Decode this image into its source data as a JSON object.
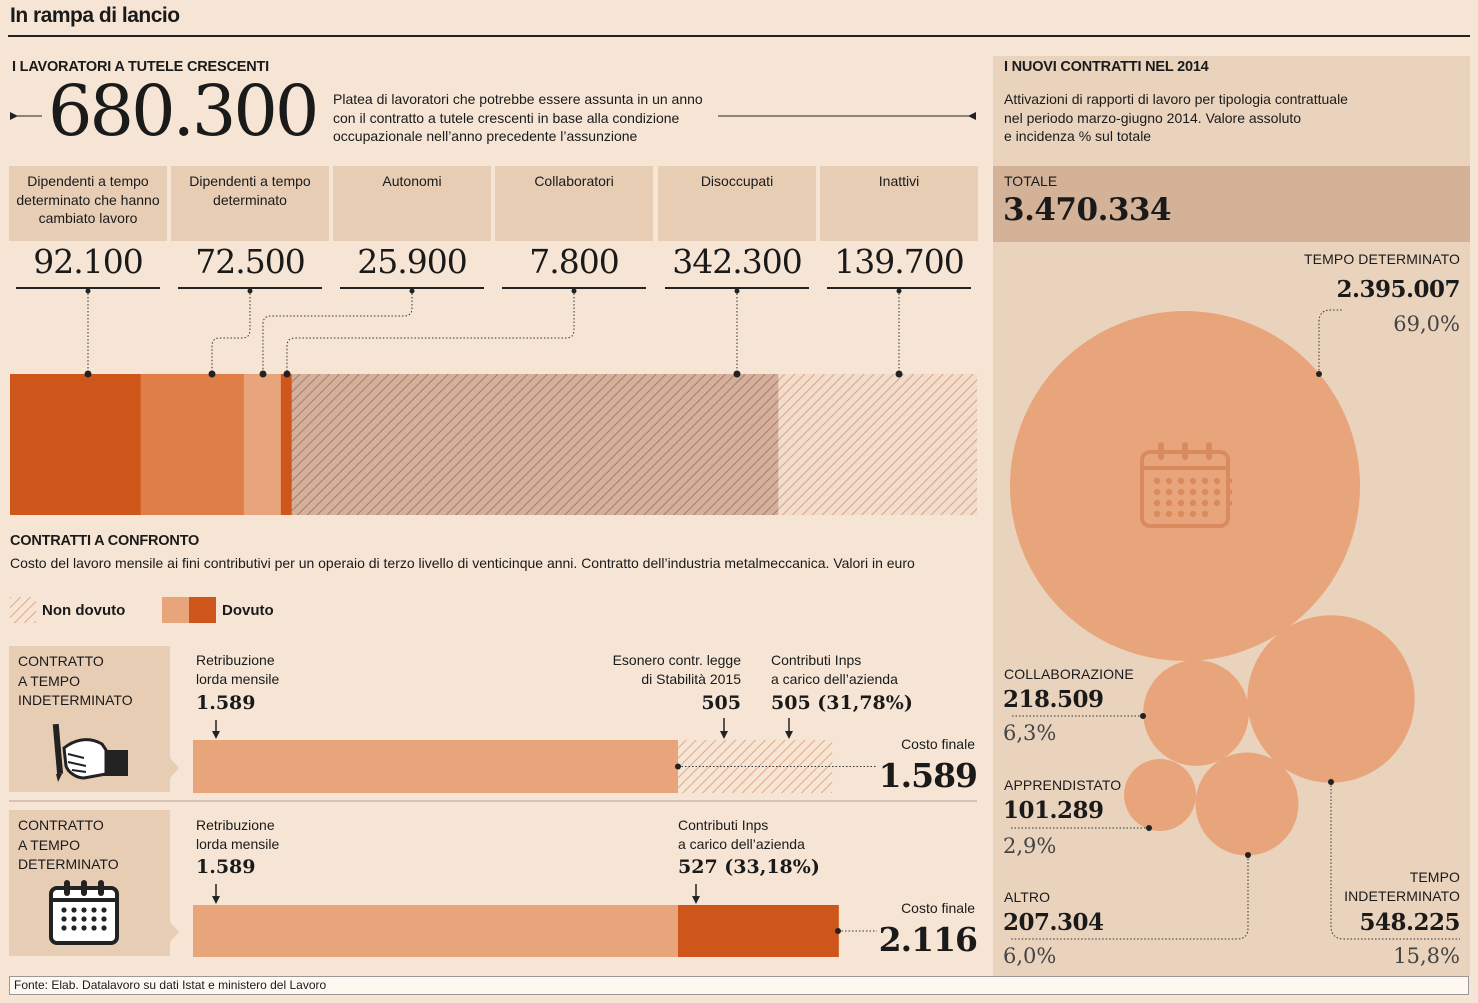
{
  "title": "In rampa di lancio",
  "left": {
    "heading": "I LAVORATORI A TUTELE CRESCENTI",
    "big_number": "680.300",
    "description": "Platea di lavoratori che potrebbe essere assunta in un anno con il contratto a tutele crescenti in base alla condizione occupazionale nell’anno precedente l’assunzione",
    "description_lines": [
      "Platea di lavoratori che potrebbe essere assunta in un anno",
      "con il contratto a tutele crescenti in base alla condizione",
      "occupazionale nell’anno precedente l’assunzione"
    ],
    "categories": [
      {
        "label_lines": [
          "Dipendenti a tempo",
          "determinato che hanno",
          "cambiato lavoro"
        ],
        "value": "92.100"
      },
      {
        "label_lines": [
          "Dipendenti a tempo",
          "determinato"
        ],
        "value": "72.500"
      },
      {
        "label_lines": [
          "Autonomi"
        ],
        "value": "25.900"
      },
      {
        "label_lines": [
          "Collaboratori"
        ],
        "value": "7.800"
      },
      {
        "label_lines": [
          "Disoccupati"
        ],
        "value": "342.300"
      },
      {
        "label_lines": [
          "Inattivi"
        ],
        "value": "139.700"
      }
    ]
  },
  "comparison": {
    "heading": "CONTRATTI A CONFRONTO",
    "subtitle": "Costo del lavoro mensile ai fini contributivi per un operaio di terzo livello di venticinque anni. Contratto dell’industria metalmeccanica. Valori in euro",
    "legend_not_due": "Non dovuto",
    "legend_due": "Dovuto",
    "rows": [
      {
        "type_lines": [
          "CONTRATTO",
          "A TEMPO",
          "INDETERMINATO"
        ],
        "icon": "hand-signing-icon",
        "retribuzione_lines": [
          "Retribuzione",
          "lorda mensile"
        ],
        "retribuzione_value": "1.589",
        "esonero_lines": [
          "Esonero contr. legge",
          "di Stabilità 2015"
        ],
        "esonero_value": "505",
        "contributi_lines": [
          "Contributi Inps",
          "a carico dell’azienda"
        ],
        "contributi_value": "505 (31,78%)",
        "costo_label": "Costo finale",
        "costo_value": "1.589"
      },
      {
        "type_lines": [
          "CONTRATTO",
          "A TEMPO",
          "DETERMINATO"
        ],
        "icon": "calendar-icon",
        "retribuzione_lines": [
          "Retribuzione",
          "lorda mensile"
        ],
        "retribuzione_value": "1.589",
        "contributi_lines": [
          "Contributi Inps",
          "a carico dell’azienda"
        ],
        "contributi_value": "527 (33,18%)",
        "costo_label": "Costo finale",
        "costo_value": "2.116"
      }
    ]
  },
  "right": {
    "heading": "I NUOVI CONTRATTI NEL 2014",
    "description_lines": [
      "Attivazioni di rapporti di lavoro per tipologia contrattuale",
      "nel periodo marzo-giugno 2014. Valore assoluto",
      "e incidenza % sul totale"
    ],
    "total_label": "TOTALE",
    "total_value": "3.470.334",
    "bubbles": [
      {
        "label_lines": [
          "TEMPO  DETERMINATO"
        ],
        "value": "2.395.007",
        "pct": "69,0%"
      },
      {
        "label_lines": [
          "COLLABORAZIONE"
        ],
        "value": "218.509",
        "pct": "6,3%"
      },
      {
        "label_lines": [
          "APPRENDISTATO"
        ],
        "value": "101.289",
        "pct": "2,9%"
      },
      {
        "label_lines": [
          "ALTRO"
        ],
        "value": "207.304",
        "pct": "6,0%"
      },
      {
        "label_lines": [
          "TEMPO",
          "INDETERMINATO"
        ],
        "value": "548.225",
        "pct": "15,8%"
      }
    ]
  },
  "source": "Fonte: Elab. Datalavoro su dati Istat e ministero del Lavoro",
  "colors": {
    "background": "#f6e5d4",
    "dark_orange": "#cf561b",
    "mid_orange": "#e07e47",
    "light_orange": "#e8a47a",
    "hatch": "#c99a83",
    "panel": "#ead3bd",
    "total_box": "#d3b298",
    "category_box": "#e8cdb5"
  },
  "chart_data": [
    {
      "type": "bar",
      "title": "I LAVORATORI A TUTELE CRESCENTI",
      "categories": [
        "Dipendenti a tempo determinato che hanno cambiato lavoro",
        "Dipendenti a tempo determinato",
        "Autonomi",
        "Collaboratori",
        "Disoccupati",
        "Inattivi"
      ],
      "values": [
        92100,
        72500,
        25900,
        7800,
        342300,
        139700
      ],
      "fill": [
        "solid",
        "solid",
        "solid",
        "solid",
        "hatched",
        "hatched"
      ],
      "total": 680300
    },
    {
      "type": "bar",
      "title": "CONTRATTI A CONFRONTO",
      "series": [
        {
          "name": "CONTRATTO A TEMPO INDETERMINATO",
          "segments": [
            {
              "name": "Retribuzione lorda mensile",
              "value": 1589,
              "status": "Dovuto"
            },
            {
              "name": "Contributi Inps",
              "value": 505,
              "status": "Non dovuto"
            }
          ],
          "total": 1589
        },
        {
          "name": "CONTRATTO A TEMPO DETERMINATO",
          "segments": [
            {
              "name": "Retribuzione lorda mensile",
              "value": 1589,
              "status": "Dovuto"
            },
            {
              "name": "Contributi Inps",
              "value": 527,
              "status": "Dovuto"
            }
          ],
          "total": 2116
        }
      ]
    },
    {
      "type": "scatter",
      "title": "I NUOVI CONTRATTI NEL 2014",
      "categories": [
        "Tempo determinato",
        "Tempo indeterminato",
        "Collaborazione",
        "Altro",
        "Apprendistato"
      ],
      "values": [
        2395007,
        548225,
        218509,
        207304,
        101289
      ],
      "percentages": [
        69.0,
        15.8,
        6.3,
        6.0,
        2.9
      ],
      "total": 3470334
    }
  ]
}
